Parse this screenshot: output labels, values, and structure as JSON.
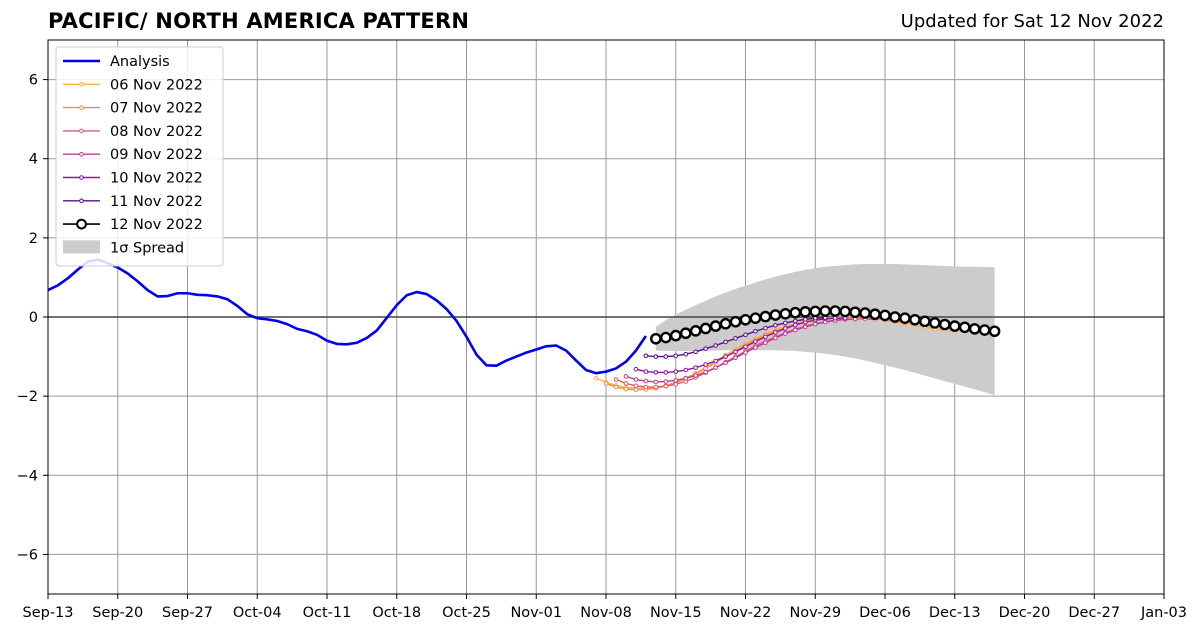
{
  "header": {
    "title": "PACIFIC/ NORTH AMERICA PATTERN",
    "subtitle": "Updated for Sat 12 Nov 2022"
  },
  "chart_data": {
    "type": "line",
    "x_tick_labels": [
      "Sep-13",
      "Sep-20",
      "Sep-27",
      "Oct-04",
      "Oct-11",
      "Oct-18",
      "Oct-25",
      "Nov-01",
      "Nov-08",
      "Nov-15",
      "Nov-22",
      "Nov-29",
      "Dec-06",
      "Dec-13",
      "Dec-20",
      "Dec-27",
      "Jan-03"
    ],
    "y_tick_labels": [
      "−6",
      "−4",
      "−2",
      "0",
      "2",
      "4",
      "6"
    ],
    "xlim": [
      "2022-09-13",
      "2023-01-03"
    ],
    "ylim": [
      -7,
      7
    ],
    "grid": true,
    "legend_position": "upper-left",
    "colors": {
      "analysis": "#0000ee",
      "spread": "#cccccc",
      "grid": "#999999"
    },
    "analysis": {
      "name": "Analysis",
      "x": [
        "2022-09-13",
        "2022-09-14",
        "2022-09-15",
        "2022-09-16",
        "2022-09-17",
        "2022-09-18",
        "2022-09-19",
        "2022-09-20",
        "2022-09-21",
        "2022-09-22",
        "2022-09-23",
        "2022-09-24",
        "2022-09-25",
        "2022-09-26",
        "2022-09-27",
        "2022-09-28",
        "2022-09-29",
        "2022-09-30",
        "2022-10-01",
        "2022-10-02",
        "2022-10-03",
        "2022-10-04",
        "2022-10-05",
        "2022-10-06",
        "2022-10-07",
        "2022-10-08",
        "2022-10-09",
        "2022-10-10",
        "2022-10-11",
        "2022-10-12",
        "2022-10-13",
        "2022-10-14",
        "2022-10-15",
        "2022-10-16",
        "2022-10-17",
        "2022-10-18",
        "2022-10-19",
        "2022-10-20",
        "2022-10-21",
        "2022-10-22",
        "2022-10-23",
        "2022-10-24",
        "2022-10-25",
        "2022-10-26",
        "2022-10-27",
        "2022-10-28",
        "2022-10-29",
        "2022-10-30",
        "2022-10-31",
        "2022-11-01",
        "2022-11-02",
        "2022-11-03",
        "2022-11-04",
        "2022-11-05",
        "2022-11-06",
        "2022-11-07",
        "2022-11-08",
        "2022-11-09",
        "2022-11-10",
        "2022-11-11",
        "2022-11-12"
      ],
      "values": [
        0.68,
        0.8,
        0.98,
        1.2,
        1.4,
        1.45,
        1.36,
        1.25,
        1.1,
        0.9,
        0.68,
        0.52,
        0.53,
        0.6,
        0.6,
        0.56,
        0.55,
        0.52,
        0.45,
        0.28,
        0.07,
        -0.03,
        -0.06,
        -0.1,
        -0.18,
        -0.3,
        -0.36,
        -0.45,
        -0.6,
        -0.68,
        -0.69,
        -0.65,
        -0.53,
        -0.34,
        -0.02,
        0.3,
        0.55,
        0.63,
        0.58,
        0.42,
        0.2,
        -0.1,
        -0.5,
        -0.95,
        -1.22,
        -1.23,
        -1.1,
        -1.0,
        -0.9,
        -0.82,
        -0.74,
        -0.72,
        -0.85,
        -1.1,
        -1.34,
        -1.42,
        -1.38,
        -1.3,
        -1.13,
        -0.85,
        -0.48
      ]
    },
    "forecasts": [
      {
        "name": "06 Nov 2022",
        "color": "#fdb245",
        "start": "2022-11-07",
        "end": "2022-12-13",
        "values": [
          -1.55,
          -1.65,
          -1.73,
          -1.78,
          -1.8,
          -1.8,
          -1.78,
          -1.73,
          -1.65,
          -1.54,
          -1.42,
          -1.27,
          -1.12,
          -0.96,
          -0.81,
          -0.67,
          -0.55,
          -0.43,
          -0.33,
          -0.24,
          -0.17,
          -0.1,
          -0.06,
          -0.03,
          -0.01,
          0,
          0,
          -0.02,
          -0.04,
          -0.08,
          -0.12,
          -0.16,
          -0.2,
          -0.25,
          -0.3,
          -0.33,
          -0.36
        ]
      },
      {
        "name": "07 Nov 2022",
        "color": "#f68b44",
        "start": "2022-11-08",
        "end": "2022-12-08",
        "values": [
          -1.68,
          -1.77,
          -1.82,
          -1.84,
          -1.83,
          -1.8,
          -1.74,
          -1.66,
          -1.56,
          -1.44,
          -1.3,
          -1.15,
          -1.0,
          -0.85,
          -0.71,
          -0.58,
          -0.46,
          -0.36,
          -0.27,
          -0.19,
          -0.13,
          -0.08,
          -0.04,
          -0.02,
          -0.01,
          -0.01,
          -0.02,
          -0.04,
          -0.07,
          -0.1,
          -0.14
        ]
      },
      {
        "name": "08 Nov 2022",
        "color": "#e05a6f",
        "start": "2022-11-09",
        "end": "2022-12-05",
        "values": [
          -1.58,
          -1.68,
          -1.74,
          -1.77,
          -1.77,
          -1.75,
          -1.7,
          -1.63,
          -1.53,
          -1.41,
          -1.28,
          -1.14,
          -1.0,
          -0.86,
          -0.73,
          -0.61,
          -0.5,
          -0.4,
          -0.31,
          -0.23,
          -0.17,
          -0.12,
          -0.08,
          -0.06,
          -0.05,
          -0.05,
          -0.06
        ]
      },
      {
        "name": "09 Nov 2022",
        "color": "#c2389a",
        "start": "2022-11-10",
        "end": "2022-12-03",
        "values": [
          -1.5,
          -1.58,
          -1.62,
          -1.64,
          -1.63,
          -1.6,
          -1.55,
          -1.48,
          -1.39,
          -1.28,
          -1.16,
          -1.03,
          -0.9,
          -0.77,
          -0.65,
          -0.53,
          -0.42,
          -0.33,
          -0.25,
          -0.18,
          -0.13,
          -0.09,
          -0.06,
          -0.05
        ]
      },
      {
        "name": "10 Nov 2022",
        "color": "#9111a1",
        "start": "2022-11-11",
        "end": "2022-12-02",
        "values": [
          -1.32,
          -1.38,
          -1.4,
          -1.4,
          -1.38,
          -1.34,
          -1.28,
          -1.2,
          -1.11,
          -1.0,
          -0.88,
          -0.75,
          -0.62,
          -0.5,
          -0.39,
          -0.29,
          -0.2,
          -0.13,
          -0.08,
          -0.05,
          -0.03,
          -0.03
        ]
      },
      {
        "name": "11 Nov 2022",
        "color": "#5e0c8a",
        "start": "2022-11-12",
        "end": "2022-11-30",
        "values": [
          -0.98,
          -1.0,
          -1.0,
          -0.98,
          -0.94,
          -0.88,
          -0.8,
          -0.72,
          -0.63,
          -0.54,
          -0.45,
          -0.36,
          -0.28,
          -0.21,
          -0.15,
          -0.1,
          -0.06,
          -0.03,
          -0.02
        ]
      },
      {
        "name": "12 Nov 2022",
        "color": "#000000",
        "start": "2022-11-13",
        "end": "2022-12-17",
        "values": [
          -0.55,
          -0.52,
          -0.47,
          -0.41,
          -0.35,
          -0.29,
          -0.23,
          -0.17,
          -0.12,
          -0.07,
          -0.03,
          0.01,
          0.05,
          0.08,
          0.11,
          0.13,
          0.14,
          0.15,
          0.15,
          0.14,
          0.12,
          0.1,
          0.07,
          0.04,
          0.0,
          -0.03,
          -0.07,
          -0.11,
          -0.15,
          -0.19,
          -0.23,
          -0.26,
          -0.3,
          -0.33,
          -0.36
        ]
      }
    ],
    "spread": {
      "name": "1σ Spread",
      "start": "2022-11-13",
      "end": "2022-12-17",
      "upper": [
        -0.25,
        -0.08,
        0.06,
        0.18,
        0.3,
        0.41,
        0.52,
        0.62,
        0.71,
        0.79,
        0.87,
        0.95,
        1.02,
        1.08,
        1.14,
        1.19,
        1.23,
        1.27,
        1.29,
        1.31,
        1.33,
        1.34,
        1.34,
        1.34,
        1.34,
        1.33,
        1.32,
        1.31,
        1.3,
        1.29,
        1.28,
        1.27,
        1.27,
        1.26,
        1.26
      ],
      "lower": [
        -0.85,
        -0.86,
        -0.86,
        -0.86,
        -0.86,
        -0.85,
        -0.85,
        -0.84,
        -0.84,
        -0.84,
        -0.84,
        -0.84,
        -0.84,
        -0.85,
        -0.86,
        -0.88,
        -0.9,
        -0.93,
        -0.96,
        -1.0,
        -1.05,
        -1.1,
        -1.16,
        -1.22,
        -1.28,
        -1.34,
        -1.41,
        -1.48,
        -1.55,
        -1.62,
        -1.69,
        -1.76,
        -1.83,
        -1.9,
        -1.98
      ]
    }
  }
}
